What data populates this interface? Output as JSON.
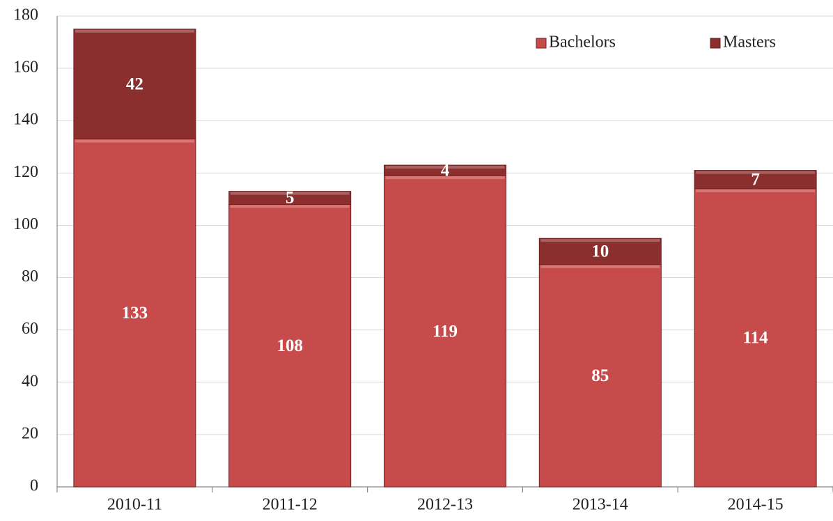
{
  "chart_data": {
    "type": "stacked_bar",
    "categories": [
      "2010-11",
      "2011-12",
      "2012-13",
      "2013-14",
      "2014-15"
    ],
    "series": [
      {
        "name": "Bachelors",
        "color": "#c84b4b",
        "values": [
          133,
          108,
          119,
          85,
          114
        ]
      },
      {
        "name": "Masters",
        "color": "#8b2e2e",
        "values": [
          42,
          5,
          4,
          10,
          7
        ]
      }
    ],
    "ylim": [
      0,
      180
    ],
    "yticks": [
      0,
      20,
      40,
      60,
      80,
      100,
      120,
      140,
      160,
      180
    ],
    "grid": true,
    "legend": "top-right"
  }
}
